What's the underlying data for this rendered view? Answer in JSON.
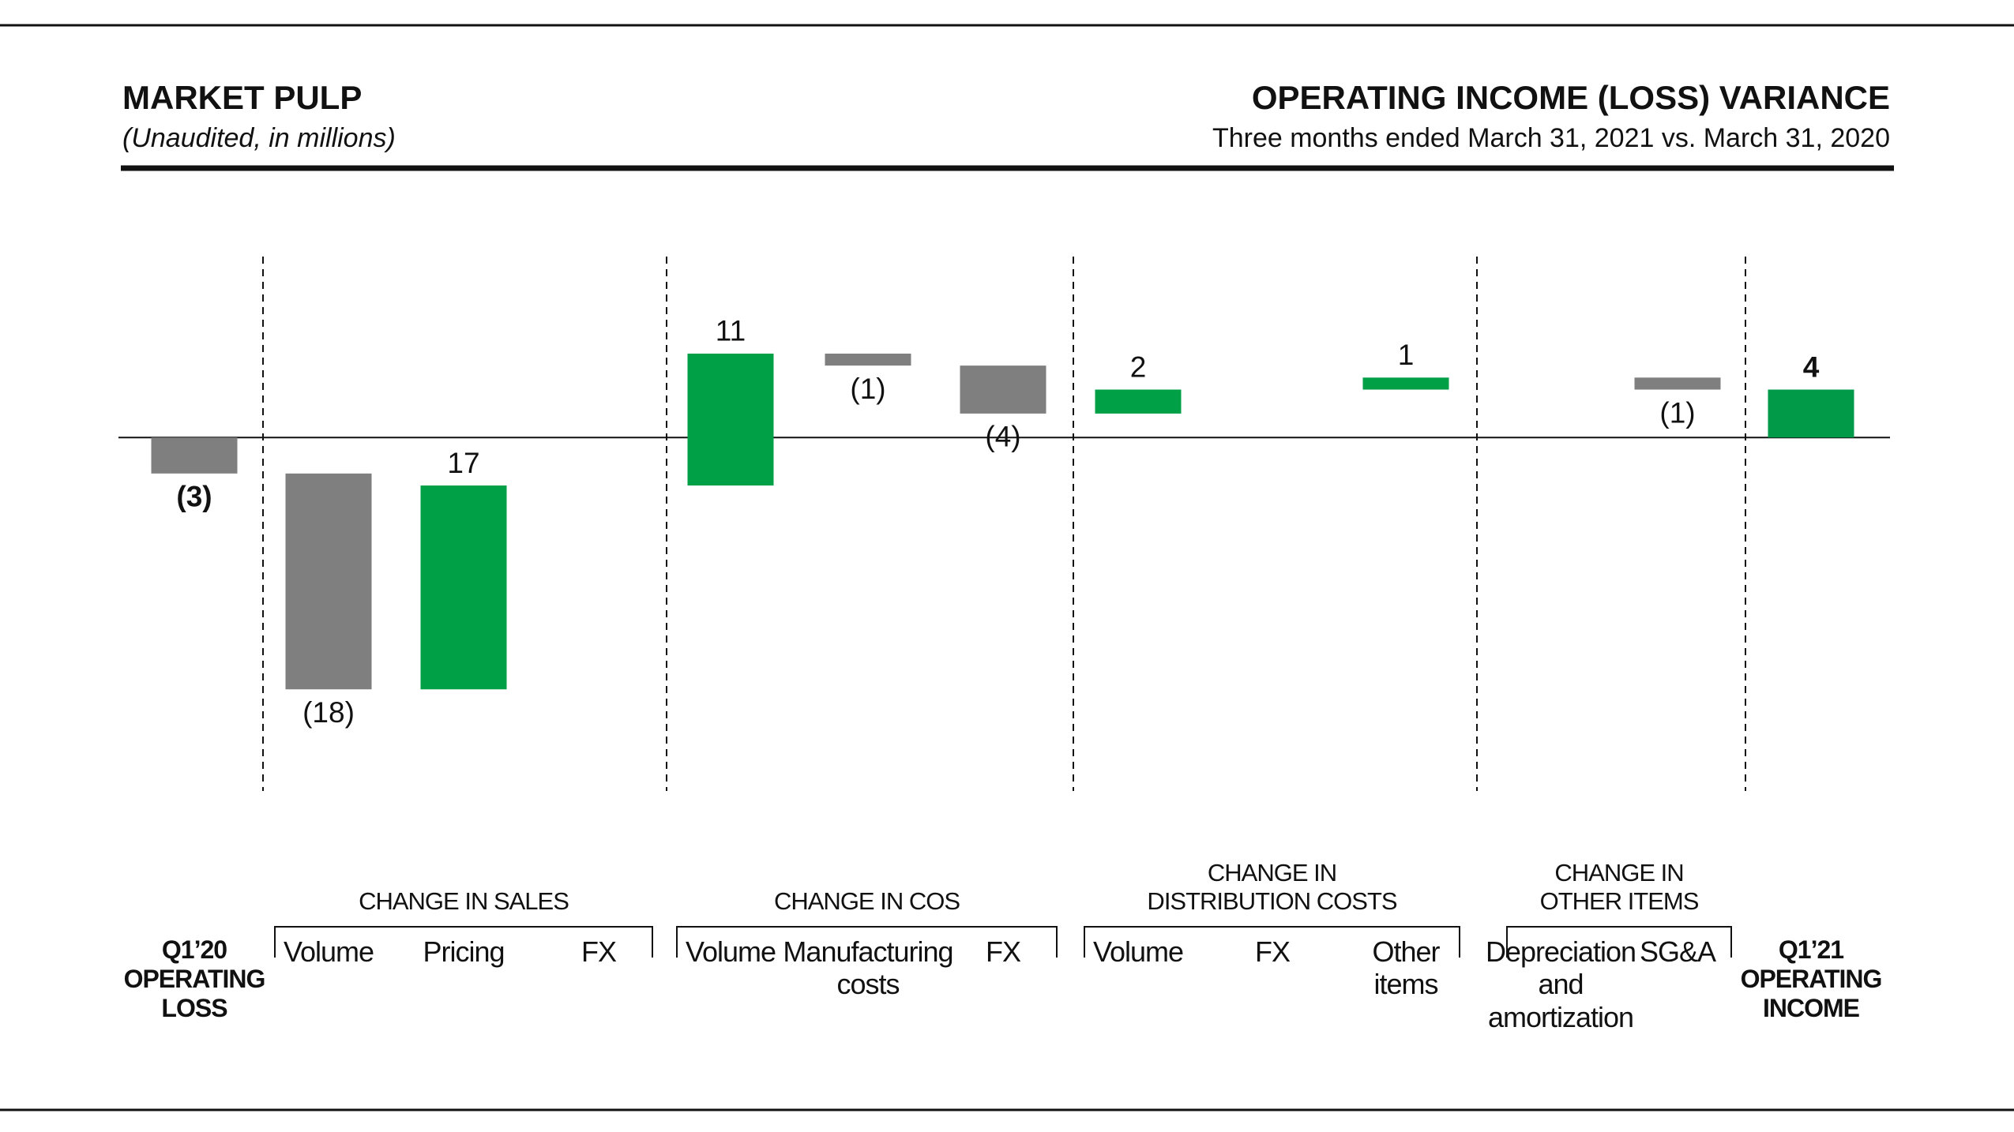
{
  "header": {
    "title": "MARKET PULP",
    "subtitle": "(Unaudited, in millions)",
    "right_title": "OPERATING INCOME (LOSS) VARIANCE",
    "right_subtitle": "Three months ended March 31, 2021 vs. March 31, 2020"
  },
  "chart_data": {
    "type": "waterfall",
    "categories": [
      "Q1’20\nOPERATING\nLOSS",
      "Volume",
      "Pricing",
      "FX",
      "Volume",
      "Manufacturing\ncosts",
      "FX",
      "Volume",
      "FX",
      "Other\nitems",
      "Depreciation\nand\namortization",
      "SG&A",
      "Q1’21\nOPERATING\nINCOME"
    ],
    "values": [
      -3,
      -18,
      17,
      0,
      11,
      -1,
      -4,
      2,
      0,
      1,
      0,
      -1,
      4
    ],
    "value_labels": [
      "(3)",
      "(18)",
      "17",
      null,
      "11",
      "(1)",
      "(4)",
      "2",
      null,
      "1",
      null,
      "(1)",
      "4"
    ],
    "totals": [
      true,
      false,
      false,
      false,
      false,
      false,
      false,
      false,
      false,
      false,
      false,
      false,
      true
    ],
    "colors": [
      "#7f7f7f",
      "#7f7f7f",
      "#00a046",
      "#00a046",
      "#00a046",
      "#7f7f7f",
      "#7f7f7f",
      "#00a046",
      "#00a046",
      "#00a046",
      "#00a046",
      "#7f7f7f",
      "#009a48"
    ],
    "groups": [
      {
        "label": "CHANGE IN SALES",
        "start": 1,
        "end": 3
      },
      {
        "label": "CHANGE IN COS",
        "start": 4,
        "end": 6
      },
      {
        "label": "CHANGE IN\nDISTRIBUTION COSTS",
        "start": 7,
        "end": 9
      },
      {
        "label": "CHANGE IN\nOTHER ITEMS",
        "start": 10,
        "end": 11
      }
    ],
    "ylim": [
      -25,
      12
    ]
  }
}
